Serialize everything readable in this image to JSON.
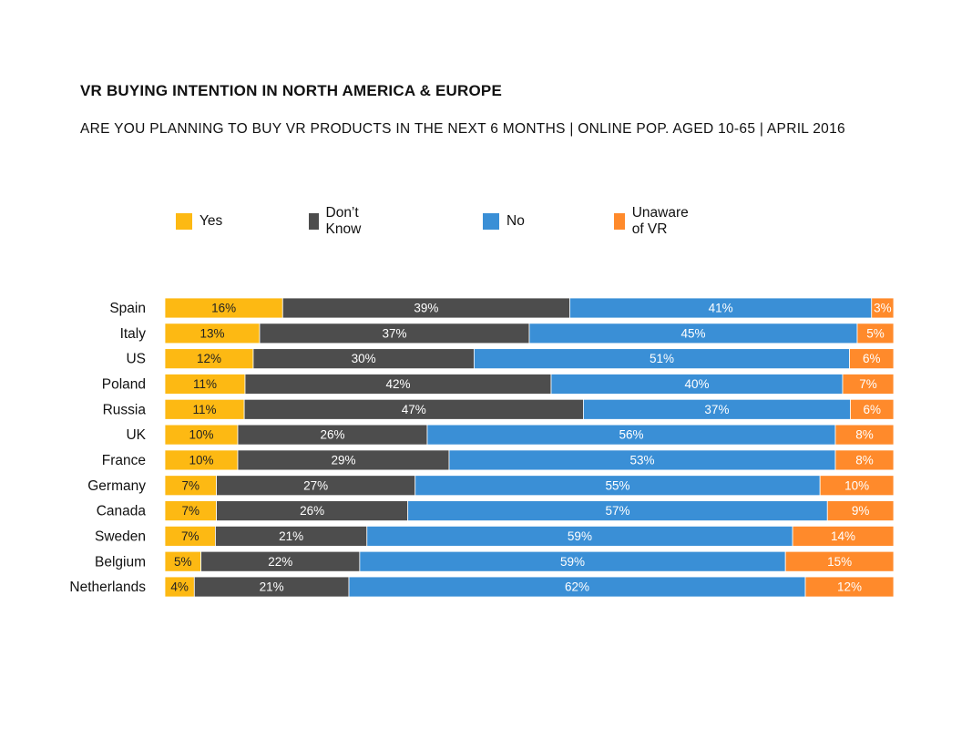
{
  "chart_data": {
    "type": "bar",
    "orientation": "horizontal-stacked-100",
    "title": "VR BUYING INTENTION IN NORTH AMERICA & EUROPE",
    "subtitle": "ARE YOU PLANNING TO BUY VR PRODUCTS IN THE NEXT 6 MONTHS | ONLINE POP. AGED 10-65 | APRIL 2016",
    "xlabel": "",
    "ylabel": "",
    "xlim": [
      0,
      100
    ],
    "legend_position": "top",
    "categories": [
      "Spain",
      "Italy",
      "US",
      "Poland",
      "Russia",
      "UK",
      "France",
      "Germany",
      "Canada",
      "Sweden",
      "Belgium",
      "Netherlands"
    ],
    "series": [
      {
        "name": "Yes",
        "color": "#FDB913",
        "label_color": "#222222",
        "values": [
          16,
          13,
          12,
          11,
          11,
          10,
          10,
          7,
          7,
          7,
          5,
          4
        ]
      },
      {
        "name": "Don’t Know",
        "color": "#4D4D4D",
        "label_color": "#ffffff",
        "values": [
          39,
          37,
          30,
          42,
          47,
          26,
          29,
          27,
          26,
          21,
          22,
          21
        ]
      },
      {
        "name": "No",
        "color": "#3A8FD6",
        "label_color": "#ffffff",
        "values": [
          41,
          45,
          51,
          40,
          37,
          56,
          53,
          55,
          57,
          59,
          59,
          62
        ]
      },
      {
        "name": "Unaware of VR",
        "color": "#FF8A2B",
        "label_color": "#ffffff",
        "values": [
          3,
          5,
          6,
          7,
          6,
          8,
          8,
          10,
          9,
          14,
          15,
          12
        ]
      }
    ]
  }
}
